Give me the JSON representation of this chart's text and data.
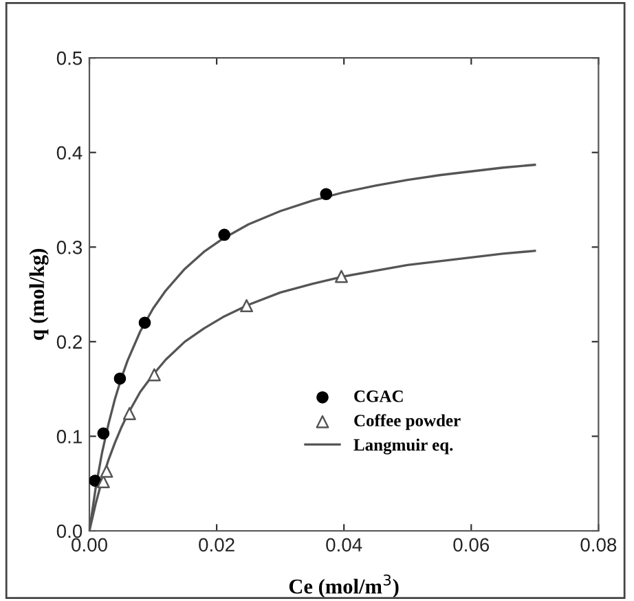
{
  "chart_data": {
    "type": "scatter",
    "xlabel": "Ce (mol/m$^{3}$)",
    "ylabel": "q (mol/kg)",
    "xlim": [
      0,
      0.08
    ],
    "ylim": [
      0,
      0.5
    ],
    "xticks": [
      {
        "value": 0,
        "label": "0.00"
      },
      0.02,
      0.04,
      0.06,
      0.08
    ],
    "yticks": [
      {
        "value": 0,
        "label": "0.0"
      },
      0.1,
      0.2,
      0.3,
      0.4,
      0.5
    ],
    "grid": false,
    "legend": "right",
    "series": [
      {
        "name": "CGAC",
        "marker": "circle",
        "color": "#000000",
        "x": [
          0.0009,
          0.0022,
          0.0048,
          0.0087,
          0.0212,
          0.0372
        ],
        "values": [
          0.053,
          0.103,
          0.161,
          0.22,
          0.313,
          0.356
        ]
      },
      {
        "name": "Coffee powder",
        "marker": "triangle",
        "color": "#555555",
        "x": [
          0.0022,
          0.0027,
          0.0063,
          0.0102,
          0.0247,
          0.0396
        ],
        "values": [
          0.052,
          0.063,
          0.124,
          0.165,
          0.238,
          0.269
        ]
      },
      {
        "name": "Langmuir eq.",
        "type": "line",
        "marker": "none",
        "color": "#555555",
        "x": [
          0,
          0.001,
          0.002,
          0.003,
          0.004,
          0.005,
          0.006,
          0.008,
          0.01,
          0.012,
          0.015,
          0.018,
          0.021,
          0.025,
          0.03,
          0.035,
          0.04,
          0.045,
          0.05,
          0.055,
          0.06,
          0.065,
          0.07
        ],
        "values": [
          0,
          0.046,
          0.083,
          0.113,
          0.139,
          0.161,
          0.18,
          0.211,
          0.235,
          0.254,
          0.277,
          0.295,
          0.309,
          0.324,
          0.338,
          0.349,
          0.358,
          0.365,
          0.371,
          0.376,
          0.38,
          0.384,
          0.387
        ]
      },
      {
        "type": "line",
        "marker": "none",
        "color": "#555555",
        "x": [
          0,
          0.001,
          0.002,
          0.003,
          0.004,
          0.005,
          0.006,
          0.008,
          0.01,
          0.012,
          0.015,
          0.018,
          0.021,
          0.025,
          0.03,
          0.035,
          0.04,
          0.045,
          0.05,
          0.055,
          0.06,
          0.065,
          0.07
        ],
        "values": [
          0,
          0.029,
          0.054,
          0.075,
          0.093,
          0.109,
          0.123,
          0.147,
          0.165,
          0.181,
          0.2,
          0.214,
          0.226,
          0.239,
          0.252,
          0.261,
          0.269,
          0.275,
          0.281,
          0.285,
          0.289,
          0.293,
          0.296
        ]
      }
    ]
  }
}
